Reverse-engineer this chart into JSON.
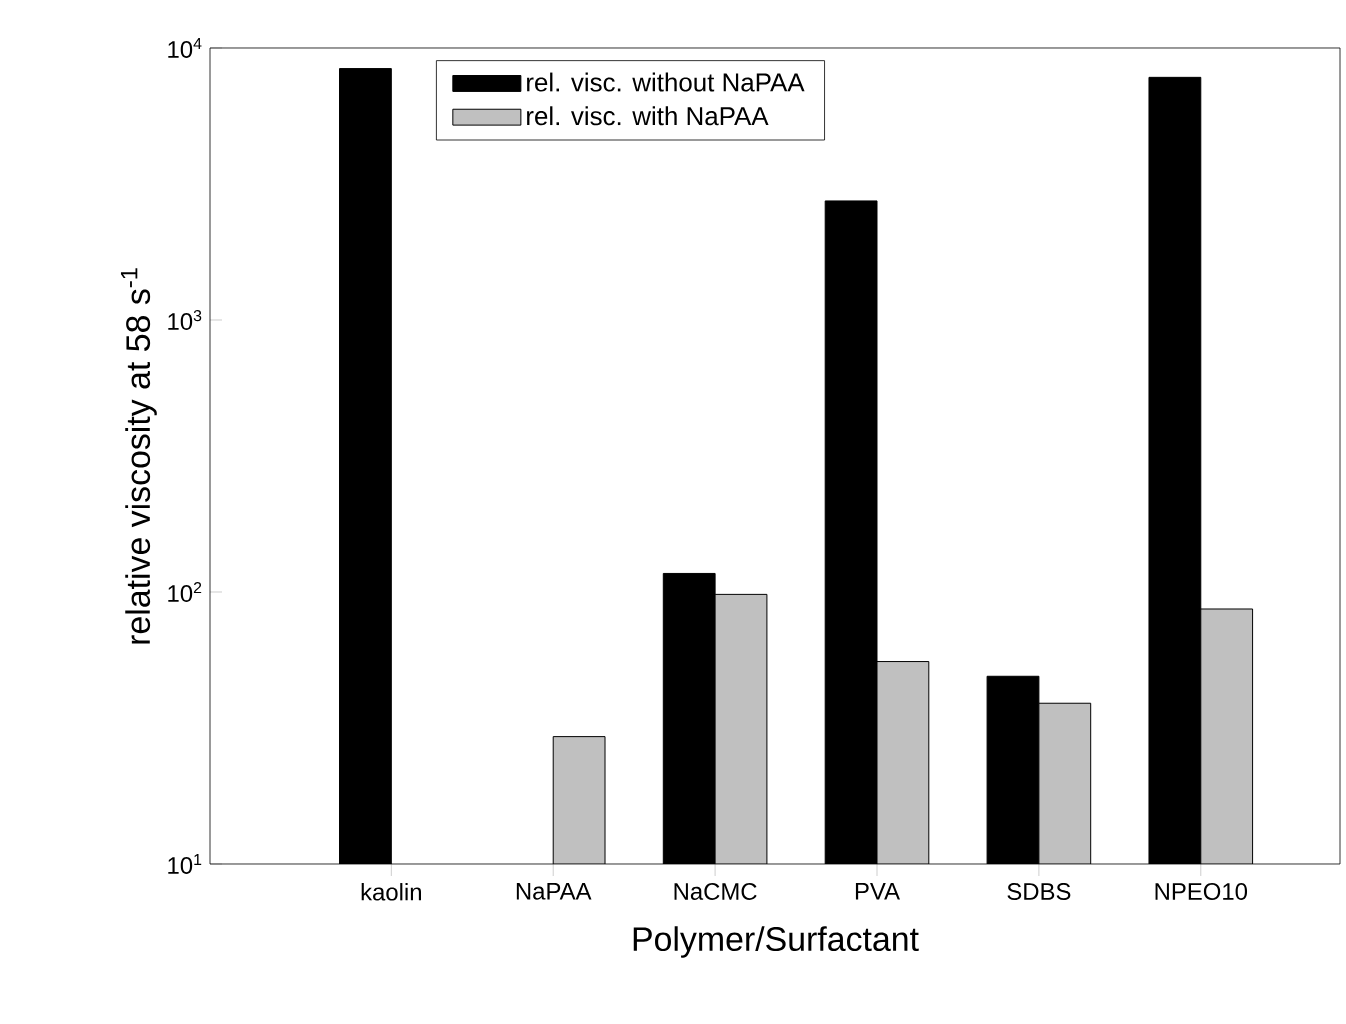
{
  "chart_data": {
    "type": "bar",
    "xlabel": "Polymer/Surfactant",
    "ylabel": "relative viscosity at 58 s$^{-1}$",
    "categories": [
      "kaolin",
      "NaPAA",
      "NaCMC",
      "PVA",
      "SDBS",
      "NPEO10"
    ],
    "series": [
      {
        "name": "rel. visc. without NaPAA",
        "color": "#000000",
        "values": [
          8400,
          null,
          117,
          2740,
          49,
          7800
        ]
      },
      {
        "name": "rel. visc. with NaPAA",
        "color": "#c0c0c0",
        "values": [
          null,
          29.4,
          98,
          55.5,
          39,
          86.6
        ]
      }
    ],
    "log": "y",
    "ylim": [
      10,
      10000
    ],
    "yticks": [
      {
        "value": 10,
        "label": "10$^{1}$"
      },
      {
        "value": 100,
        "label": "10$^{2}$"
      },
      {
        "value": 1000,
        "label": "10$^{3}$"
      },
      {
        "value": 10000,
        "label": "10$^{4}$"
      }
    ],
    "legend": "top",
    "grid": false
  }
}
